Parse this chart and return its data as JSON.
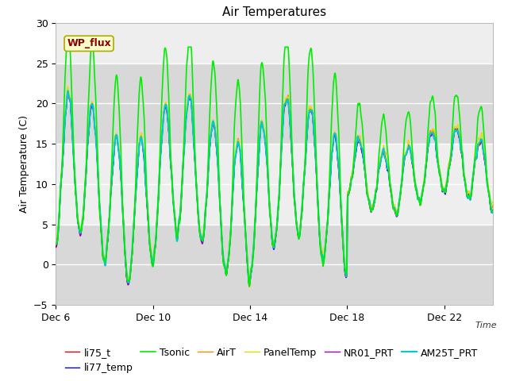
{
  "title": "Air Temperatures",
  "xlabel": "Time",
  "ylabel": "Air Temperature (C)",
  "ylim": [
    -5,
    30
  ],
  "yticks": [
    -5,
    0,
    5,
    10,
    15,
    20,
    25,
    30
  ],
  "x_tick_labels": [
    "Dec 6",
    "Dec 10",
    "Dec 14",
    "Dec 18",
    "Dec 22"
  ],
  "x_tick_positions": [
    0,
    4,
    8,
    12,
    16
  ],
  "num_days": 18,
  "legend_entries": [
    "li75_t",
    "li77_temp",
    "Tsonic",
    "AirT",
    "PanelTemp",
    "NR01_PRT",
    "AM25T_PRT"
  ],
  "line_colors": [
    "#dd0000",
    "#0000dd",
    "#00ee00",
    "#ff8800",
    "#dddd00",
    "#9900bb",
    "#00cccc"
  ],
  "line_widths": [
    1.0,
    1.0,
    1.2,
    1.0,
    1.0,
    1.0,
    1.5
  ],
  "wp_flux_label": "WP_flux",
  "wp_flux_text_color": "#880000",
  "wp_flux_box_color": "#ffffcc",
  "wp_flux_box_edge": "#aaaa00",
  "background_color": "#ffffff",
  "plot_bg_color": "#eeeeee",
  "grid_color": "#ffffff",
  "shaded_bands": [
    {
      "ymin": -5,
      "ymax": 5,
      "color": "#d8d8d8"
    },
    {
      "ymin": 15,
      "ymax": 25,
      "color": "#d8d8d8"
    }
  ],
  "title_fontsize": 11,
  "axis_label_fontsize": 9,
  "tick_fontsize": 9,
  "legend_fontsize": 9
}
